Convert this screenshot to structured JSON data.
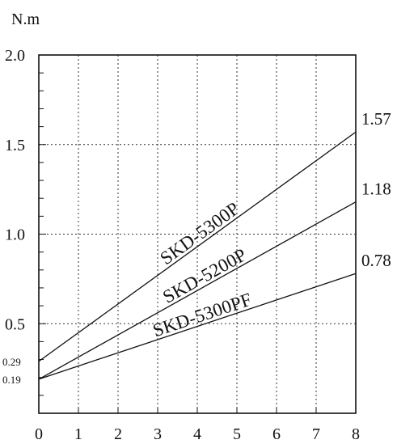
{
  "chart_data": {
    "type": "line",
    "title": "",
    "xlabel": "",
    "ylabel": "N.m",
    "xlim": [
      0,
      8
    ],
    "ylim": [
      0,
      2.0
    ],
    "x_ticks": [
      "0",
      "1",
      "2",
      "3",
      "4",
      "5",
      "6",
      "7",
      "8"
    ],
    "y_ticks": [
      "0.5",
      "1.0",
      "1.5",
      "2.0"
    ],
    "y_intercept_labels": [
      "0.29",
      "0.19"
    ],
    "grid": true,
    "series": [
      {
        "name": "SKD-5300P",
        "x": [
          0,
          8
        ],
        "values": [
          0.29,
          1.57
        ],
        "end_label": "1.57"
      },
      {
        "name": "SKD-5200P",
        "x": [
          0,
          8
        ],
        "values": [
          0.19,
          1.18
        ],
        "end_label": "1.18"
      },
      {
        "name": "SKD-5300PF",
        "x": [
          0,
          8
        ],
        "values": [
          0.19,
          0.78
        ],
        "end_label": "0.78"
      }
    ]
  },
  "colors": {
    "line": "#111111",
    "grid": "#333333",
    "background": "#ffffff"
  }
}
